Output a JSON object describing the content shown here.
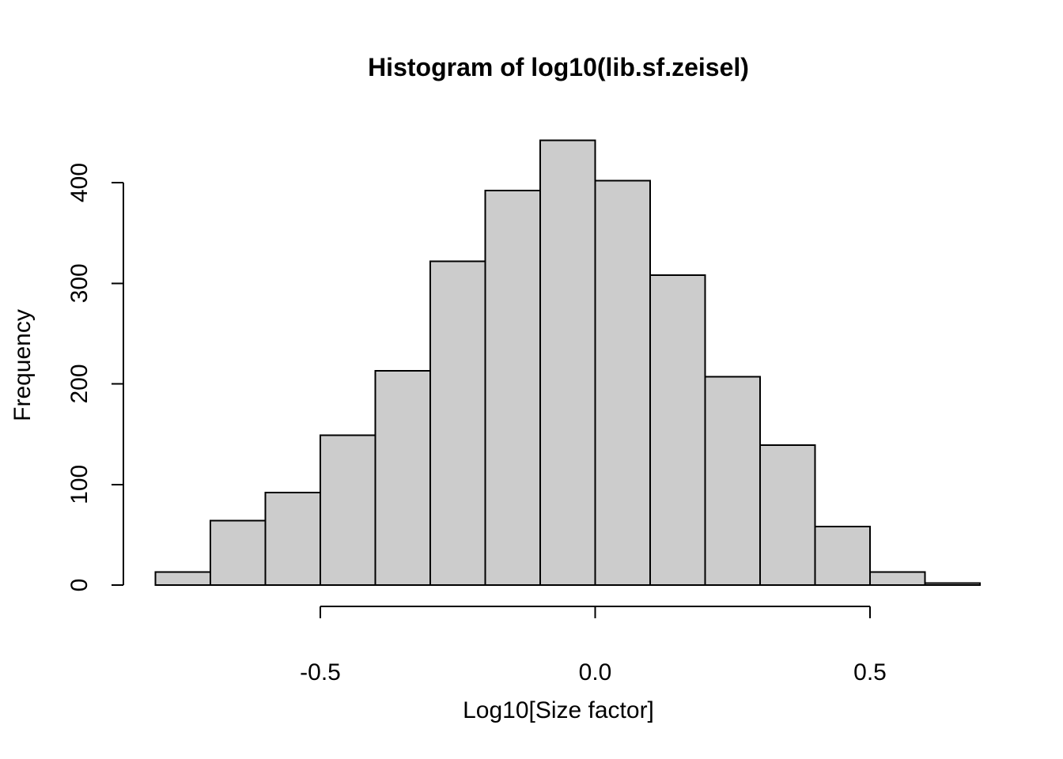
{
  "figure": {
    "title": "Histogram of log10(lib.sf.zeisel)"
  },
  "chart_data": {
    "type": "bar",
    "chart_kind": "histogram",
    "title": "Histogram of log10(lib.sf.zeisel)",
    "xlabel": "Log10[Size factor]",
    "ylabel": "Frequency",
    "bin_edges": [
      -0.8,
      -0.7,
      -0.6,
      -0.5,
      -0.4,
      -0.3,
      -0.2,
      -0.1,
      0.0,
      0.1,
      0.2,
      0.3,
      0.4,
      0.5,
      0.6,
      0.7
    ],
    "frequencies": [
      13,
      64,
      92,
      149,
      213,
      322,
      392,
      442,
      402,
      308,
      207,
      139,
      58,
      13,
      2
    ],
    "x_ticks": {
      "values": [
        -0.5,
        0.0,
        0.5
      ],
      "labels": [
        "-0.5",
        "0.0",
        "0.5"
      ]
    },
    "y_ticks": {
      "values": [
        0,
        100,
        200,
        300,
        400
      ],
      "labels": [
        "0",
        "100",
        "200",
        "300",
        "400"
      ]
    },
    "xlim": [
      -0.8,
      0.7
    ],
    "ylim": [
      0,
      442
    ],
    "grid": false,
    "legend": "none",
    "bar_fill": "#cccccc",
    "bar_border": "#000000",
    "axis_color": "#000000",
    "text_color": "#000000",
    "background": "#ffffff"
  }
}
